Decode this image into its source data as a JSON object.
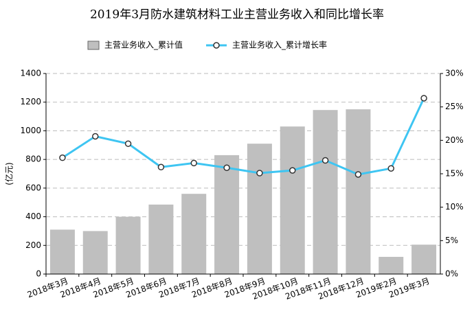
{
  "chart_data": {
    "type": "bar-line",
    "title": "2019年3月防水建筑材料工业主营业务收入和同比增长率",
    "y_label": "(亿元)",
    "categories": [
      "2018年3月",
      "2018年4月",
      "2018年5月",
      "2018年6月",
      "2018年7月",
      "2018年8月",
      "2018年9月",
      "2018年10月",
      "2018年11月",
      "2018年12月",
      "2019年2月",
      "2019年3月"
    ],
    "series": [
      {
        "name": "主营业务收入_累计值",
        "type": "bar",
        "color": "#bfbfbf",
        "values": [
          310,
          300,
          400,
          485,
          560,
          830,
          910,
          1030,
          1145,
          1150,
          120,
          205
        ]
      },
      {
        "name": "主营业务收入_累计增长率",
        "type": "line",
        "axis": "y2",
        "color": "#3ec5f2",
        "values": [
          17.4,
          20.6,
          19.5,
          16.0,
          16.6,
          15.9,
          15.1,
          15.5,
          17.0,
          14.9,
          15.8,
          26.3
        ]
      }
    ],
    "ylim": [
      0,
      1400
    ],
    "yticks": [
      0,
      200,
      400,
      600,
      800,
      1000,
      1200,
      1400
    ],
    "y2lim": [
      0,
      30
    ],
    "y2ticks": [
      {
        "value": 0,
        "label": "0%"
      },
      {
        "value": 5,
        "label": "5%"
      },
      {
        "value": 10,
        "label": "10%"
      },
      {
        "value": 15,
        "label": "15%"
      },
      {
        "value": 20,
        "label": "20%"
      },
      {
        "value": 25,
        "label": "25%"
      },
      {
        "value": 30,
        "label": "30%"
      }
    ],
    "grid": true,
    "legend": "top"
  }
}
